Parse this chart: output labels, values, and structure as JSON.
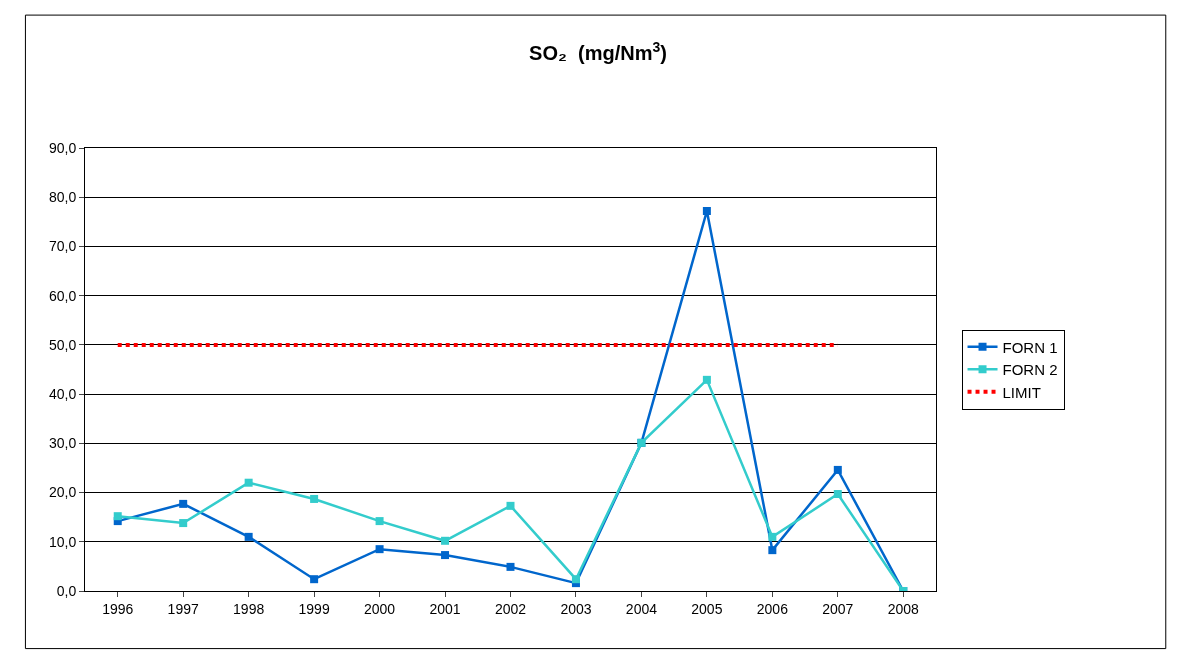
{
  "chart_data": {
    "type": "line",
    "title": "SO₂  (mg/Nm$^{3}$)",
    "categories": [
      "1996",
      "1997",
      "1998",
      "1999",
      "2000",
      "2001",
      "2002",
      "2003",
      "2004",
      "2005",
      "2006",
      "2007",
      "2008"
    ],
    "series": [
      {
        "name": "FORN 1",
        "color": "#0066cc",
        "marker": "square",
        "line_style": "solid",
        "values": [
          14.2,
          17.7,
          11.0,
          2.4,
          8.5,
          7.3,
          4.9,
          1.6,
          30.1,
          77.2,
          8.3,
          24.6,
          0
        ]
      },
      {
        "name": "FORN 2",
        "color": "#33cccc",
        "marker": "square",
        "line_style": "solid",
        "values": [
          15.2,
          13.8,
          22.0,
          18.7,
          14.2,
          10.2,
          17.3,
          2.4,
          30.1,
          42.9,
          11.0,
          19.7,
          0
        ]
      },
      {
        "name": "LIMIT",
        "color": "#ff0000",
        "marker": "none",
        "line_style": "dotted",
        "values": [
          50,
          50,
          50,
          50,
          50,
          50,
          50,
          50,
          50,
          50,
          50,
          50,
          null
        ]
      }
    ],
    "ylim": [
      0,
      90
    ],
    "yticks": [
      {
        "value": 0,
        "label": "0,0"
      },
      {
        "value": 10,
        "label": "10,0"
      },
      {
        "value": 20,
        "label": "20,0"
      },
      {
        "value": 30,
        "label": "30,0"
      },
      {
        "value": 40,
        "label": "40,0"
      },
      {
        "value": 50,
        "label": "50,0"
      },
      {
        "value": 60,
        "label": "60,0"
      },
      {
        "value": 70,
        "label": "70,0"
      },
      {
        "value": 80,
        "label": "80,0"
      },
      {
        "value": 90,
        "label": "90,0"
      }
    ],
    "grid": "y",
    "legend": "right"
  }
}
